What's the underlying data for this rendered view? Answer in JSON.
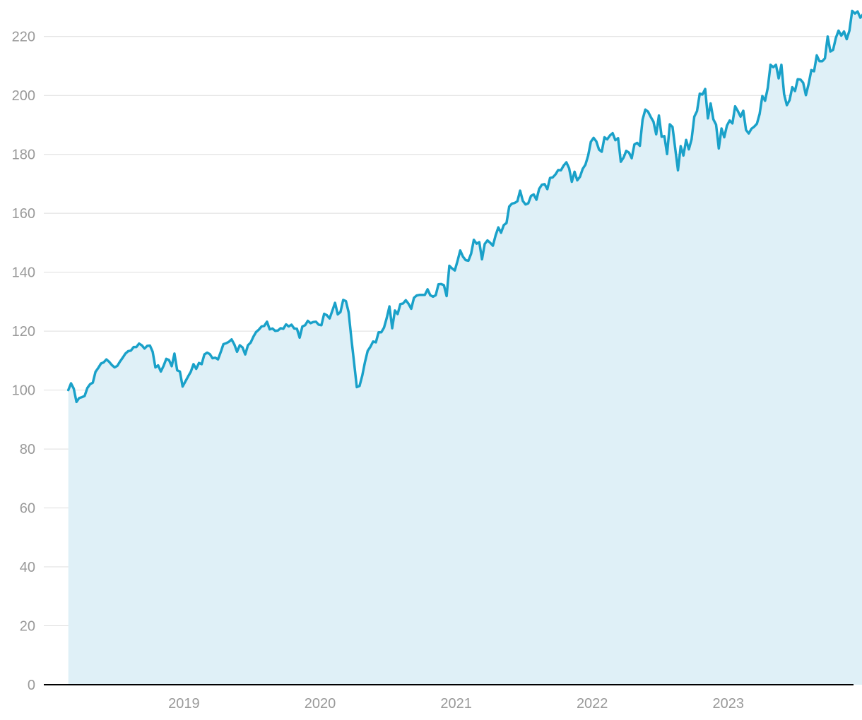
{
  "chart_data": {
    "type": "area",
    "x_start": 2018.15,
    "x_step_years": 0.02,
    "x_tick_labels": [
      "2019",
      "2020",
      "2021",
      "2022",
      "2023"
    ],
    "x_tick_values": [
      2019,
      2020,
      2021,
      2022,
      2023
    ],
    "y_ticks": [
      0,
      20,
      40,
      60,
      80,
      100,
      120,
      140,
      160,
      180,
      200,
      220
    ],
    "ylim": [
      0,
      230
    ],
    "xlim": [
      2017.97,
      2023.92
    ],
    "grid": true,
    "colors": {
      "line": "#1aa1c9",
      "fill": "#dff0f7",
      "grid": "#dedede",
      "tick": "#999999",
      "axis": "#000000"
    },
    "series": [
      {
        "values": [
          100,
          102.3,
          100.5,
          96,
          97.3,
          97.6,
          98,
          100.7,
          102,
          102.5,
          106.2,
          107.5,
          109,
          109.4,
          110.4,
          109.6,
          108.5,
          107.7,
          108.2,
          109.7,
          111,
          112.4,
          113.2,
          113.4,
          114.6,
          114.6,
          115.8,
          115.2,
          114.1,
          115,
          115.1,
          113,
          107.7,
          108.4,
          106.3,
          108.2,
          110.6,
          110.2,
          108.1,
          112.4,
          106.7,
          106.3,
          101.2,
          102.9,
          104.6,
          106.2,
          108.8,
          107.2,
          109.2,
          108.8,
          112.1,
          112.7,
          112.2,
          110.8,
          111,
          110.4,
          112.9,
          115.6,
          115.9,
          116.4,
          117.2,
          115.5,
          113,
          115.2,
          114.5,
          112.1,
          115.2,
          116.1,
          118.1,
          119.7,
          120.5,
          121.6,
          121.8,
          123.2,
          120.6,
          120.9,
          120.1,
          120.2,
          121,
          120.8,
          122.3,
          121.6,
          122.2,
          120.9,
          120.8,
          117.8,
          121.6,
          122,
          123.5,
          122.7,
          123.1,
          123.2,
          122.2,
          122,
          125.9,
          125.4,
          124.3,
          126.9,
          129.6,
          125.7,
          126.5,
          130.6,
          130.2,
          126.4,
          117.5,
          109.3,
          101,
          101.4,
          104.9,
          109.5,
          113.3,
          114.7,
          116.5,
          116.2,
          119.6,
          119.6,
          121.2,
          124.5,
          128.4,
          121,
          127,
          125.8,
          129.2,
          129.4,
          130.5,
          129.3,
          127.6,
          131.3,
          132.1,
          132.3,
          132.3,
          132.3,
          134.2,
          132.2,
          131.7,
          132.2,
          135.9,
          136,
          135.6,
          131.9,
          142.2,
          141.3,
          140.6,
          143.8,
          147.4,
          145.3,
          144.1,
          143.9,
          146.3,
          151,
          149.7,
          150.2,
          144.4,
          149.6,
          150.8,
          150,
          149,
          152.5,
          155.2,
          153.4,
          156,
          156.7,
          162.3,
          163.3,
          163.5,
          164.1,
          167.7,
          164.2,
          163,
          163.4,
          165.9,
          166.4,
          164.6,
          168.3,
          169.7,
          169.9,
          168.2,
          172,
          172.2,
          173.2,
          174.7,
          174.6,
          176.2,
          177.3,
          175.3,
          170.7,
          174.1,
          171.2,
          172.4,
          175.1,
          176.5,
          179.6,
          184.3,
          185.6,
          184.4,
          181.6,
          180.9,
          185.8,
          185.1,
          186.4,
          187.2,
          184.8,
          185.5,
          177.5,
          178.9,
          181.2,
          180.6,
          178.7,
          183.4,
          183.9,
          182.9,
          191.8,
          195.2,
          194.5,
          192.7,
          191.1,
          186.8,
          193.2,
          186,
          186.2,
          180.1,
          190.2,
          189.3,
          181.9,
          174.6,
          182.8,
          179.6,
          184.9,
          181.7,
          185.1,
          192.8,
          194.7,
          200.6,
          200.3,
          202.2,
          192.2,
          197.3,
          191.9,
          190.1,
          182,
          188.8,
          185.8,
          189.8,
          191.5,
          190.5,
          196.3,
          194.7,
          192.8,
          194.8,
          188.3,
          187.1,
          188.7,
          189.4,
          190.4,
          193.7,
          199.8,
          198.2,
          202.6,
          210.4,
          209.6,
          210.4,
          205.8,
          210.4,
          200.4,
          196.7,
          198.4,
          202.8,
          201.5,
          205.5,
          205.4,
          204.3,
          200.1,
          203.9,
          208.6,
          208.2,
          213.6,
          211.6,
          211.6,
          212.6,
          220,
          214.9,
          215.5,
          219.5,
          222,
          220.3,
          221.7,
          219.1,
          222,
          228.7,
          227.8,
          228.5,
          226.4,
          227.6,
          228.8
        ]
      }
    ]
  }
}
